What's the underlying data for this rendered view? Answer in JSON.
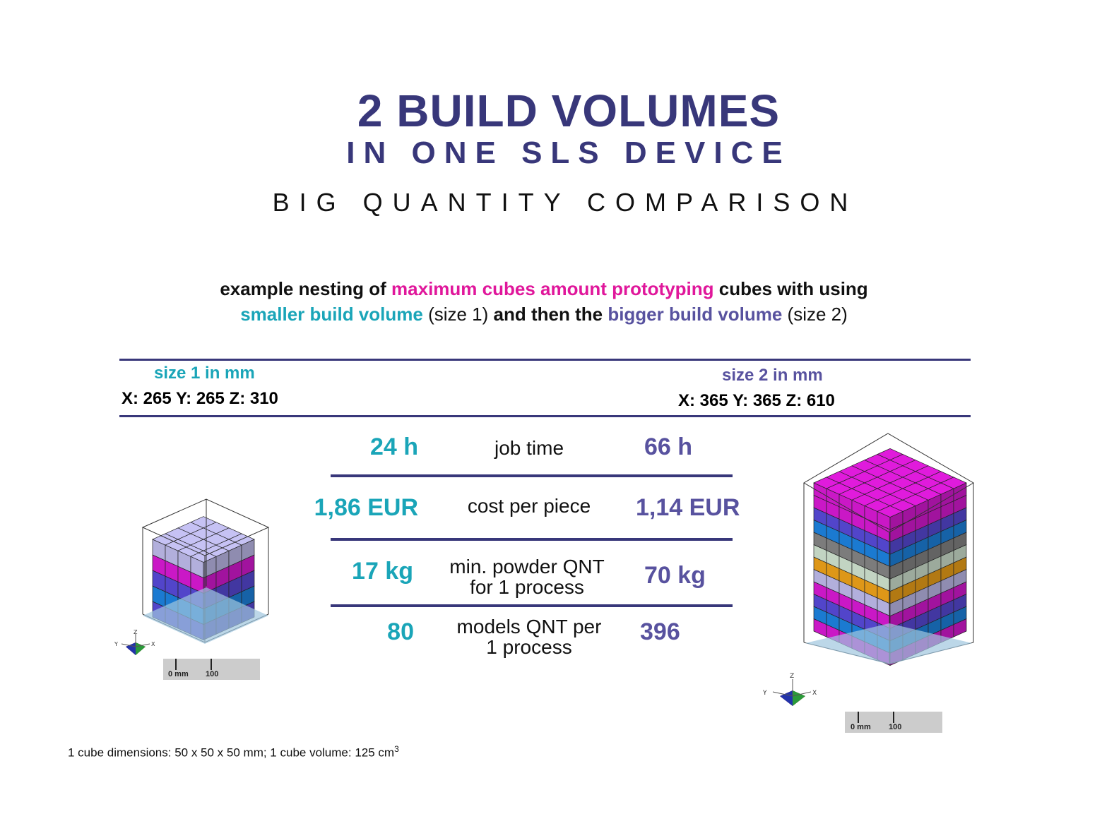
{
  "title": {
    "main": "2 BUILD VOLUMES",
    "sub": "IN ONE SLS DEVICE",
    "comparison": "BIG QUANTITY COMPARISON"
  },
  "intro": {
    "line1_a": "example nesting of ",
    "line1_b": "maximum cubes amount  prototyping",
    "line1_c": " cubes with using",
    "line2_a": "smaller build volume",
    "line2_b": " (size 1) ",
    "line2_c": "and then the ",
    "line2_d": "bigger build volume",
    "line2_e": " (size 2)"
  },
  "size1": {
    "title": "size 1 in mm",
    "dims": "X: 265  Y: 265  Z: 310"
  },
  "size2": {
    "title": "size 2 in mm",
    "dims": "X: 365  Y: 365  Z: 610"
  },
  "metrics": [
    {
      "label": "job time",
      "size1": "24 h",
      "size2": "66 h"
    },
    {
      "label": "cost per piece",
      "size1": "1,86 EUR",
      "size2": "1,14 EUR"
    },
    {
      "label_line1": "min. powder QNT",
      "label_line2": "for 1 process",
      "size1": "17 kg",
      "size2": "70 kg"
    },
    {
      "label_line1": "models QNT per",
      "label_line2": "1 process",
      "size1": "80",
      "size2": "396"
    }
  ],
  "axes": {
    "x": "X",
    "y": "Y",
    "z": "Z"
  },
  "scale": {
    "zero": "0 mm",
    "hundred": "100"
  },
  "footnote": {
    "text": "1 cube dimensions: 50 x 50 x 50 mm; 1 cube volume: 125 cm",
    "sup": "3"
  },
  "colors": {
    "navy": "#38377a",
    "teal": "#1aa5b8",
    "pink": "#e0179b",
    "purple": "#58529f",
    "cube_magenta": "#e01bdc",
    "cube_blue": "#1e88e8",
    "cube_violet": "#5b4de0",
    "cube_lavender": "#c6c2f4",
    "cube_gray": "#8a8a8a",
    "cube_mint": "#d8ecd8",
    "cube_orange": "#f7a81b"
  }
}
